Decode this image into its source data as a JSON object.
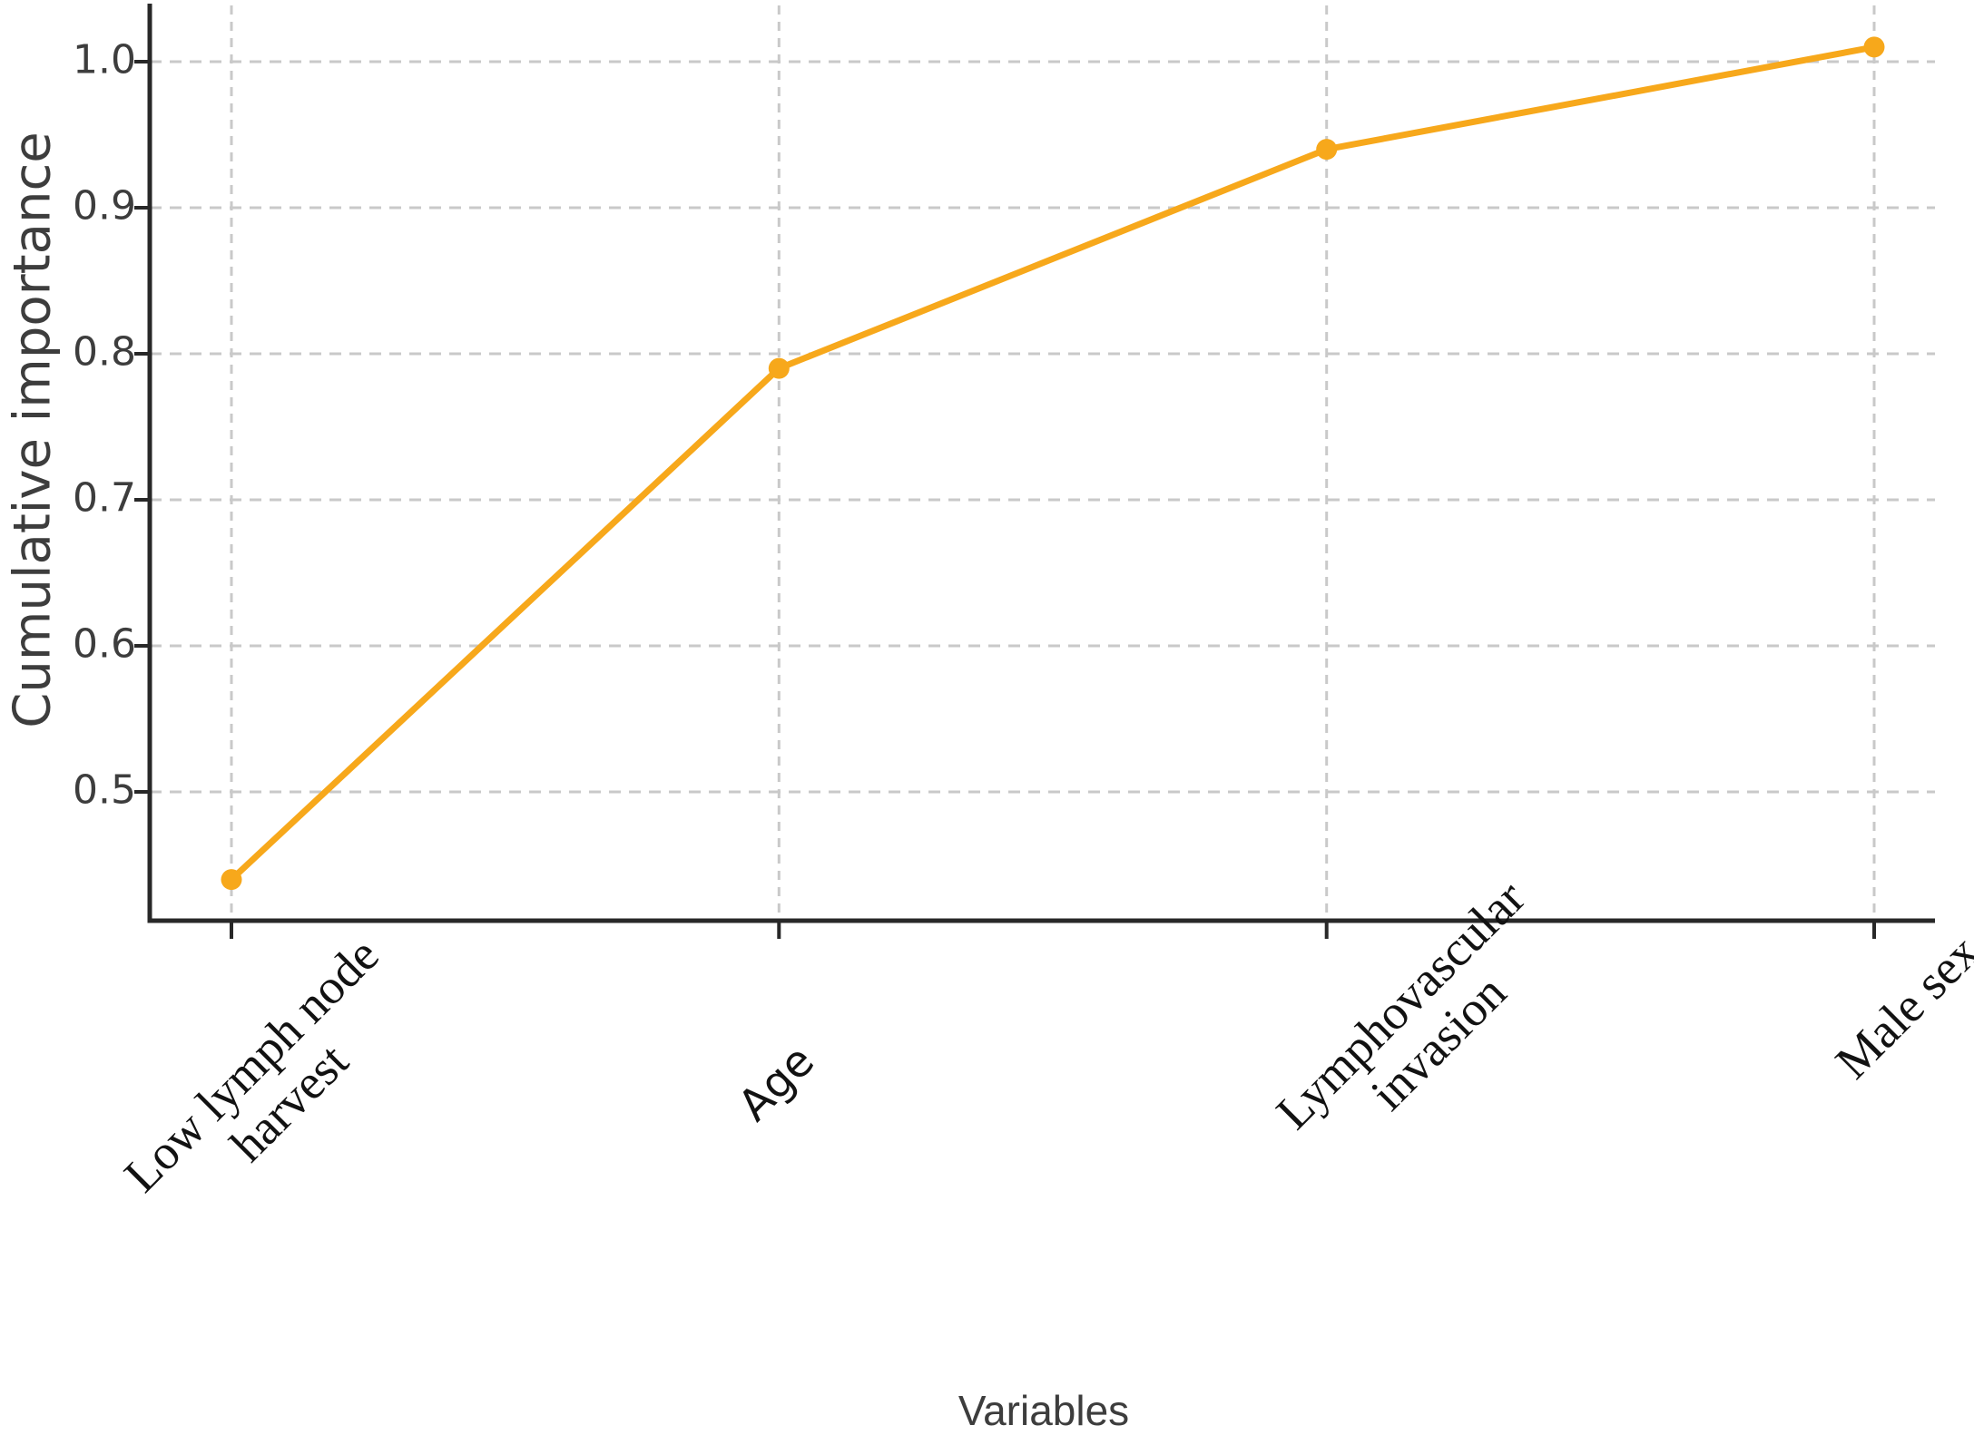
{
  "chart_data": {
    "type": "line",
    "title": "",
    "xlabel": "Variables",
    "ylabel": "Cumulative importance",
    "categories": [
      "Low lymph node\nharvest",
      "Age",
      "Lymphovascular\ninvasion",
      "Male sex"
    ],
    "values": [
      0.44,
      0.79,
      0.94,
      1.01
    ],
    "y_tick_labels": [
      "0.5",
      "0.6",
      "0.7",
      "0.8",
      "0.9",
      "1.0"
    ],
    "ylim": [
      0.41,
      1.04
    ],
    "grid": "dashed, horizontal and vertical, light gray",
    "legend": "none",
    "marker": "circle",
    "colors": {
      "line": "#F7A81B",
      "marker": "#F7A81B",
      "grid": "#c9c9c9",
      "axis": "#282828",
      "tick_text": "#3d3d3d",
      "category_text": "#121212"
    }
  }
}
